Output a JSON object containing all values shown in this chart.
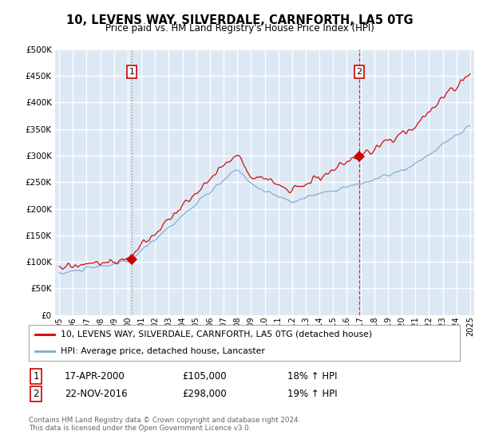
{
  "title": "10, LEVENS WAY, SILVERDALE, CARNFORTH, LA5 0TG",
  "subtitle": "Price paid vs. HM Land Registry's House Price Index (HPI)",
  "red_line_color": "#cc0000",
  "blue_line_color": "#7aadcf",
  "sale1_date": 2000.29,
  "sale1_price": 105000,
  "sale2_date": 2016.9,
  "sale2_price": 298000,
  "legend_entry1": "10, LEVENS WAY, SILVERDALE, CARNFORTH, LA5 0TG (detached house)",
  "legend_entry2": "HPI: Average price, detached house, Lancaster",
  "table_row1": [
    "1",
    "17-APR-2000",
    "£105,000",
    "18% ↑ HPI"
  ],
  "table_row2": [
    "2",
    "22-NOV-2016",
    "£298,000",
    "19% ↑ HPI"
  ],
  "footer": "Contains HM Land Registry data © Crown copyright and database right 2024.\nThis data is licensed under the Open Government Licence v3.0.",
  "fig_bg_color": "#ffffff",
  "plot_bg_color": "#dce9f5",
  "ylim": [
    0,
    500000
  ],
  "xlim_start": 1994.7,
  "xlim_end": 2025.3
}
